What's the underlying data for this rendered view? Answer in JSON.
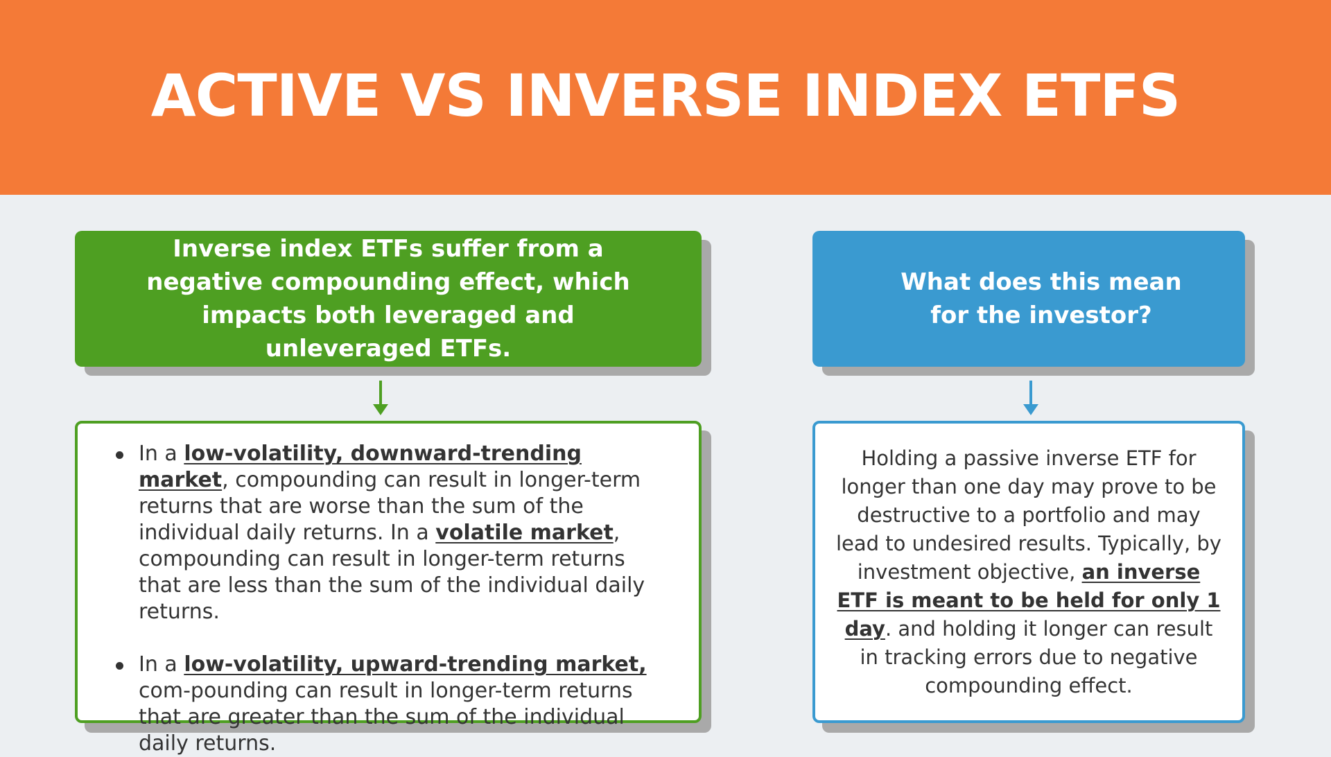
{
  "title": "ACTIVE VS INVERSE INDEX ETFS",
  "colors": {
    "banner": "#f47a37",
    "green": "#4e9f22",
    "blue": "#3a9ad0",
    "background": "#eceff2"
  },
  "left": {
    "heading": "Inverse index ETFs suffer from a negative compounding effect, which impacts both leveraged and unleveraged ETFs.",
    "arrow_icon": "arrow-down",
    "bullet1": {
      "p1": "In a ",
      "h1": "low-volatility, downward-trending market",
      "p2": ", compounding can result in longer-term returns that are worse than the sum of the individual daily returns. In a ",
      "h2": "volatile market",
      "p3": ", compounding can result in longer-term returns that are less than the sum of the individual daily returns."
    },
    "bullet2": {
      "p1": "In a ",
      "h1": "low-volatility, upward-trending market,",
      "p2": " com-pounding can result in longer-term returns that are greater than the sum of the individual daily returns."
    }
  },
  "right": {
    "heading": "What does this mean for the investor?",
    "arrow_icon": "arrow-down",
    "text": {
      "p1": "Holding a passive inverse ETF for longer than one day may prove to be destructive to a portfolio and may lead to undesired results. Typically, by investment objective, ",
      "h1": "an inverse ETF is meant to be held for only 1 day",
      "p2": ". and holding it longer can result in tracking errors due to negative compounding effect."
    }
  }
}
